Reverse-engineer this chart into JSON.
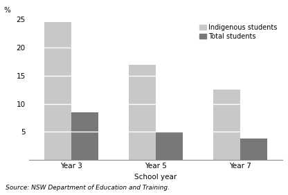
{
  "categories": [
    "Year 3",
    "Year 5",
    "Year 7"
  ],
  "indigenous": [
    24.5,
    17.0,
    12.5
  ],
  "total": [
    8.5,
    5.0,
    3.8
  ],
  "indigenous_color": "#c8c8c8",
  "total_color": "#787878",
  "xlabel": "School year",
  "ylabel": "%",
  "ylim": [
    0,
    25
  ],
  "yticks": [
    0,
    5,
    10,
    15,
    20,
    25
  ],
  "legend_labels": [
    "Indigenous students",
    "Total students"
  ],
  "source_text": "Source: NSW Department of Education and Training.",
  "bar_width": 0.32,
  "axis_fontsize": 7.5,
  "legend_fontsize": 7,
  "source_fontsize": 6.5
}
